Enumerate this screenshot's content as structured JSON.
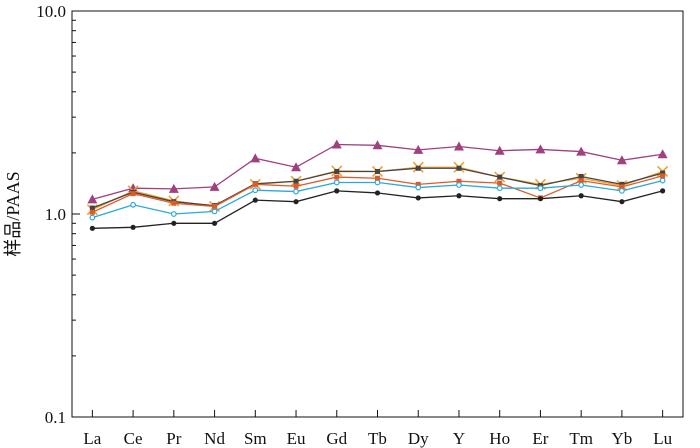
{
  "chart_data": {
    "type": "line",
    "xlabel": "",
    "ylabel": "样品/PAAS",
    "y_scale": "log",
    "ylim": [
      0.1,
      10.0
    ],
    "y_ticks": [
      "0.1",
      "1.0",
      "10.0"
    ],
    "categories": [
      "La",
      "Ce",
      "Pr",
      "Nd",
      "Sm",
      "Eu",
      "Gd",
      "Tb",
      "Dy",
      "Y",
      "Ho",
      "Er",
      "Tm",
      "Yb",
      "Lu"
    ],
    "legend": "none",
    "grid": false,
    "series": [
      {
        "color": "#a0407f",
        "marker": "triangle",
        "values": [
          1.18,
          1.34,
          1.33,
          1.36,
          1.88,
          1.7,
          2.2,
          2.18,
          2.07,
          2.15,
          2.05,
          2.08,
          2.03,
          1.84,
          1.97
        ]
      },
      {
        "color": "#f0a030",
        "marker": "x",
        "values": [
          1.05,
          1.3,
          1.16,
          1.09,
          1.4,
          1.45,
          1.63,
          1.62,
          1.7,
          1.7,
          1.52,
          1.4,
          1.5,
          1.38,
          1.62
        ]
      },
      {
        "color": "#444444",
        "marker": "square",
        "values": [
          1.07,
          1.28,
          1.15,
          1.1,
          1.41,
          1.45,
          1.62,
          1.62,
          1.68,
          1.68,
          1.52,
          1.38,
          1.53,
          1.4,
          1.59
        ]
      },
      {
        "color": "#e05a28",
        "marker": "square",
        "values": [
          1.02,
          1.26,
          1.13,
          1.09,
          1.4,
          1.37,
          1.52,
          1.5,
          1.4,
          1.45,
          1.42,
          1.2,
          1.46,
          1.36,
          1.54
        ]
      },
      {
        "color": "#2aa8e0",
        "marker": "circle-open",
        "values": [
          0.96,
          1.11,
          1.0,
          1.03,
          1.31,
          1.29,
          1.43,
          1.43,
          1.35,
          1.39,
          1.34,
          1.34,
          1.39,
          1.3,
          1.46
        ]
      },
      {
        "color": "#222222",
        "marker": "circle",
        "values": [
          0.85,
          0.86,
          0.9,
          0.9,
          1.17,
          1.15,
          1.3,
          1.27,
          1.2,
          1.23,
          1.19,
          1.19,
          1.23,
          1.15,
          1.3
        ]
      }
    ]
  }
}
